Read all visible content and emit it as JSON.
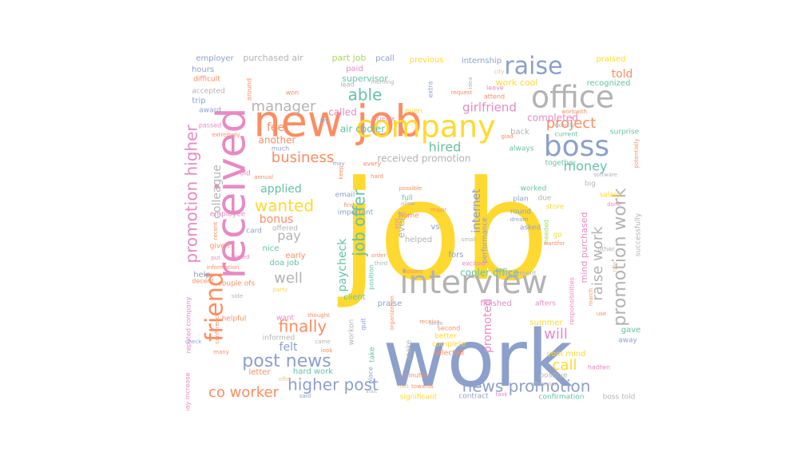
{
  "palette": {
    "yellow": "#ffd92f",
    "blue": "#8da0cb",
    "orange": "#fc8d62",
    "pink": "#e78ac3",
    "teal": "#66c2a5",
    "gray": "#b3b3b3",
    "tan": "#e5c494",
    "green": "#a6d854"
  },
  "words": [
    {
      "text": "job",
      "color": "yellow"
    },
    {
      "text": "work",
      "color": "blue"
    },
    {
      "text": "new job",
      "color": "orange"
    },
    {
      "text": "received",
      "color": "pink"
    },
    {
      "text": "interview",
      "color": "gray"
    },
    {
      "text": "company",
      "color": "yellow"
    },
    {
      "text": "office",
      "color": "gray"
    },
    {
      "text": "raise",
      "color": "blue"
    },
    {
      "text": "boss",
      "color": "blue"
    },
    {
      "text": "promotion higher",
      "color": "pink"
    },
    {
      "text": "friend",
      "color": "orange"
    },
    {
      "text": "higher post",
      "color": "blue"
    },
    {
      "text": "news promotion",
      "color": "blue"
    },
    {
      "text": "post news",
      "color": "blue"
    },
    {
      "text": "promotion work",
      "color": "gray"
    },
    {
      "text": "raise work",
      "color": "gray"
    },
    {
      "text": "project",
      "color": "orange"
    },
    {
      "text": "job offer",
      "color": "teal"
    },
    {
      "text": "finally",
      "color": "orange"
    },
    {
      "text": "able",
      "color": "teal"
    },
    {
      "text": "business",
      "color": "orange"
    },
    {
      "text": "wanted",
      "color": "yellow"
    },
    {
      "text": "well",
      "color": "gray"
    },
    {
      "text": "call",
      "color": "yellow"
    },
    {
      "text": "will",
      "color": "pink"
    },
    {
      "text": "co worker",
      "color": "orange"
    },
    {
      "text": "manager",
      "color": "gray"
    },
    {
      "text": "money",
      "color": "teal"
    },
    {
      "text": "hired",
      "color": "teal"
    },
    {
      "text": "girlfriend",
      "color": "pink"
    },
    {
      "text": "paycheck",
      "color": "teal"
    },
    {
      "text": "told",
      "color": "orange"
    },
    {
      "text": "applied",
      "color": "teal"
    },
    {
      "text": "pay",
      "color": "gray"
    },
    {
      "text": "internet",
      "color": "blue"
    },
    {
      "text": "feel",
      "color": "orange"
    },
    {
      "text": "colleague",
      "color": "gray"
    },
    {
      "text": "bonus",
      "color": "orange"
    },
    {
      "text": "felt",
      "color": "blue"
    },
    {
      "text": "promoted",
      "color": "pink"
    },
    {
      "text": "completed",
      "color": "pink"
    },
    {
      "text": "air cooler",
      "color": "teal"
    },
    {
      "text": "received promotion",
      "color": "gray"
    },
    {
      "text": "another",
      "color": "orange"
    },
    {
      "text": "recognized",
      "color": "teal"
    },
    {
      "text": "cooler office",
      "color": "teal"
    },
    {
      "text": "event",
      "color": "gray"
    },
    {
      "text": "mind purchased",
      "color": "pink"
    },
    {
      "text": "called",
      "color": "pink"
    },
    {
      "text": "supervisor",
      "color": "teal"
    },
    {
      "text": "work cool",
      "color": "yellow"
    },
    {
      "text": "employer",
      "color": "blue"
    },
    {
      "text": "purchased air",
      "color": "gray"
    },
    {
      "text": "part job",
      "color": "green"
    },
    {
      "text": "pcall",
      "color": "blue"
    },
    {
      "text": "previous",
      "color": "yellow"
    },
    {
      "text": "internship",
      "color": "blue"
    },
    {
      "text": "praised",
      "color": "yellow"
    },
    {
      "text": "hours",
      "color": "blue"
    },
    {
      "text": "paid",
      "color": "pink"
    },
    {
      "text": "difficult",
      "color": "orange"
    },
    {
      "text": "accepted",
      "color": "gray"
    },
    {
      "text": "trip",
      "color": "blue"
    },
    {
      "text": "award",
      "color": "blue"
    },
    {
      "text": "around",
      "color": "orange"
    },
    {
      "text": "even",
      "color": "yellow"
    },
    {
      "text": "extra",
      "color": "blue"
    },
    {
      "text": "idea",
      "color": "gray"
    },
    {
      "text": "attend",
      "color": "orange"
    },
    {
      "text": "leave",
      "color": "pink"
    },
    {
      "text": "city",
      "color": "tan"
    },
    {
      "text": "may",
      "color": "blue"
    },
    {
      "text": "every",
      "color": "orange"
    },
    {
      "text": "back",
      "color": "gray"
    },
    {
      "text": "workwith",
      "color": "orange"
    },
    {
      "text": "always",
      "color": "teal"
    },
    {
      "text": "surprise",
      "color": "teal"
    },
    {
      "text": "exactly",
      "color": "gray"
    },
    {
      "text": "potentially",
      "color": "orange"
    },
    {
      "text": "together",
      "color": "teal"
    },
    {
      "text": "old",
      "color": "pink"
    },
    {
      "text": "annual",
      "color": "orange"
    },
    {
      "text": "email",
      "color": "blue"
    },
    {
      "text": "salary",
      "color": "yellow"
    },
    {
      "text": "big",
      "color": "gray"
    },
    {
      "text": "worked",
      "color": "teal"
    },
    {
      "text": "due",
      "color": "gray"
    },
    {
      "text": "plan",
      "color": "blue"
    },
    {
      "text": "store",
      "color": "yellow"
    },
    {
      "text": "round",
      "color": "blue"
    },
    {
      "text": "dream",
      "color": "blue"
    },
    {
      "text": "asked",
      "color": "blue"
    },
    {
      "text": "go",
      "color": "yellow"
    },
    {
      "text": "needed",
      "color": "green"
    },
    {
      "text": "done",
      "color": "pink"
    },
    {
      "text": "employee",
      "color": "pink"
    },
    {
      "text": "offered",
      "color": "gray"
    },
    {
      "text": "card",
      "color": "blue"
    },
    {
      "text": "given",
      "color": "orange"
    },
    {
      "text": "nice",
      "color": "teal"
    },
    {
      "text": "early",
      "color": "orange"
    },
    {
      "text": "doa job",
      "color": "teal"
    },
    {
      "text": "signed",
      "color": "pink"
    },
    {
      "text": "put",
      "color": "pink"
    },
    {
      "text": "help",
      "color": "blue"
    },
    {
      "text": "decent",
      "color": "orange"
    },
    {
      "text": "couple ofs",
      "color": "orange"
    },
    {
      "text": "party",
      "color": "yellow"
    },
    {
      "text": "full",
      "color": "teal"
    },
    {
      "text": "home",
      "color": "orange"
    },
    {
      "text": "helped",
      "color": "gray"
    },
    {
      "text": "important",
      "color": "blue"
    },
    {
      "text": "find",
      "color": "orange"
    },
    {
      "text": "possible",
      "color": "orange"
    },
    {
      "text": "allow",
      "color": "gray"
    },
    {
      "text": "major",
      "color": "orange"
    },
    {
      "text": "end",
      "color": "pink"
    },
    {
      "text": "vs",
      "color": "blue"
    },
    {
      "text": "performance",
      "color": "blue"
    },
    {
      "text": "fors",
      "color": "blue"
    },
    {
      "text": "excited",
      "color": "pink"
    },
    {
      "text": "increment",
      "color": "gray"
    },
    {
      "text": "successfully",
      "color": "gray"
    },
    {
      "text": "role",
      "color": "tan"
    },
    {
      "text": "wantfor",
      "color": "orange"
    },
    {
      "text": "other",
      "color": "gray"
    },
    {
      "text": "client",
      "color": "teal"
    },
    {
      "text": "praise",
      "color": "blue"
    },
    {
      "text": "position",
      "color": "teal"
    },
    {
      "text": "finished",
      "color": "pink"
    },
    {
      "text": "afters",
      "color": "pink"
    },
    {
      "text": "responsibilities",
      "color": "pink"
    },
    {
      "text": "summer",
      "color": "yellow"
    },
    {
      "text": "gave",
      "color": "teal"
    },
    {
      "text": "away",
      "color": "blue"
    },
    {
      "text": "march",
      "color": "orange"
    },
    {
      "text": "use",
      "color": "orange"
    },
    {
      "text": "want",
      "color": "pink"
    },
    {
      "text": "helpful",
      "color": "orange"
    },
    {
      "text": "informed",
      "color": "gray"
    },
    {
      "text": "thought",
      "color": "orange"
    },
    {
      "text": "workon",
      "color": "gray"
    },
    {
      "text": "quit",
      "color": "blue"
    },
    {
      "text": "make",
      "color": "gray"
    },
    {
      "text": "second",
      "color": "orange"
    },
    {
      "text": "better",
      "color": "yellow"
    },
    {
      "text": "complete",
      "color": "yellow"
    },
    {
      "text": "selected",
      "color": "orange"
    },
    {
      "text": "hard work",
      "color": "teal"
    },
    {
      "text": "letter",
      "color": "orange"
    },
    {
      "text": "take",
      "color": "teal"
    },
    {
      "text": "came",
      "color": "gray"
    },
    {
      "text": "look",
      "color": "orange"
    },
    {
      "text": "minutes",
      "color": "orange"
    },
    {
      "text": "towards",
      "color": "orange"
    },
    {
      "text": "positive",
      "color": "gray"
    },
    {
      "text": "hadten",
      "color": "pink"
    },
    {
      "text": "cool mind",
      "color": "yellow"
    },
    {
      "text": "confirmation",
      "color": "teal"
    },
    {
      "text": "boss told",
      "color": "gray"
    },
    {
      "text": "contract",
      "color": "blue"
    },
    {
      "text": "significant",
      "color": "yellow"
    },
    {
      "text": "visit",
      "color": "gray"
    },
    {
      "text": "place",
      "color": "blue"
    },
    {
      "text": "said",
      "color": "blue"
    },
    {
      "text": "offer",
      "color": "tan"
    },
    {
      "text": "many",
      "color": "orange"
    },
    {
      "text": "pay increase",
      "color": "pink"
    },
    {
      "text": "reputed company",
      "color": "pink"
    },
    {
      "text": "check",
      "color": "blue"
    },
    {
      "text": "conference",
      "color": "orange"
    },
    {
      "text": "side",
      "color": "gray"
    },
    {
      "text": "information",
      "color": "orange"
    },
    {
      "text": "recent",
      "color": "orange"
    },
    {
      "text": "passed",
      "color": "pink"
    },
    {
      "text": "extremely",
      "color": "orange"
    },
    {
      "text": "much",
      "color": "blue"
    },
    {
      "text": "joy",
      "color": "blue"
    },
    {
      "text": "increase",
      "color": "pink"
    },
    {
      "text": "hard",
      "color": "orange"
    },
    {
      "text": "keep",
      "color": "orange"
    },
    {
      "text": "lead",
      "color": "gray"
    },
    {
      "text": "morning",
      "color": "gray"
    },
    {
      "text": "request",
      "color": "orange"
    },
    {
      "text": "small",
      "color": "gray"
    },
    {
      "text": "met",
      "color": "tan"
    },
    {
      "text": "third",
      "color": "gray"
    },
    {
      "text": "bosses",
      "color": "orange"
    },
    {
      "text": "order",
      "color": "orange"
    },
    {
      "text": "organization",
      "color": "orange"
    },
    {
      "text": "receiva",
      "color": "orange"
    },
    {
      "text": "large",
      "color": "gray"
    },
    {
      "text": "afternoon",
      "color": "gray"
    },
    {
      "text": "glad",
      "color": "orange"
    },
    {
      "text": "current",
      "color": "teal"
    },
    {
      "text": "software",
      "color": "gray"
    },
    {
      "text": "won",
      "color": "orange"
    },
    {
      "text": "task",
      "color": "pink"
    }
  ]
}
